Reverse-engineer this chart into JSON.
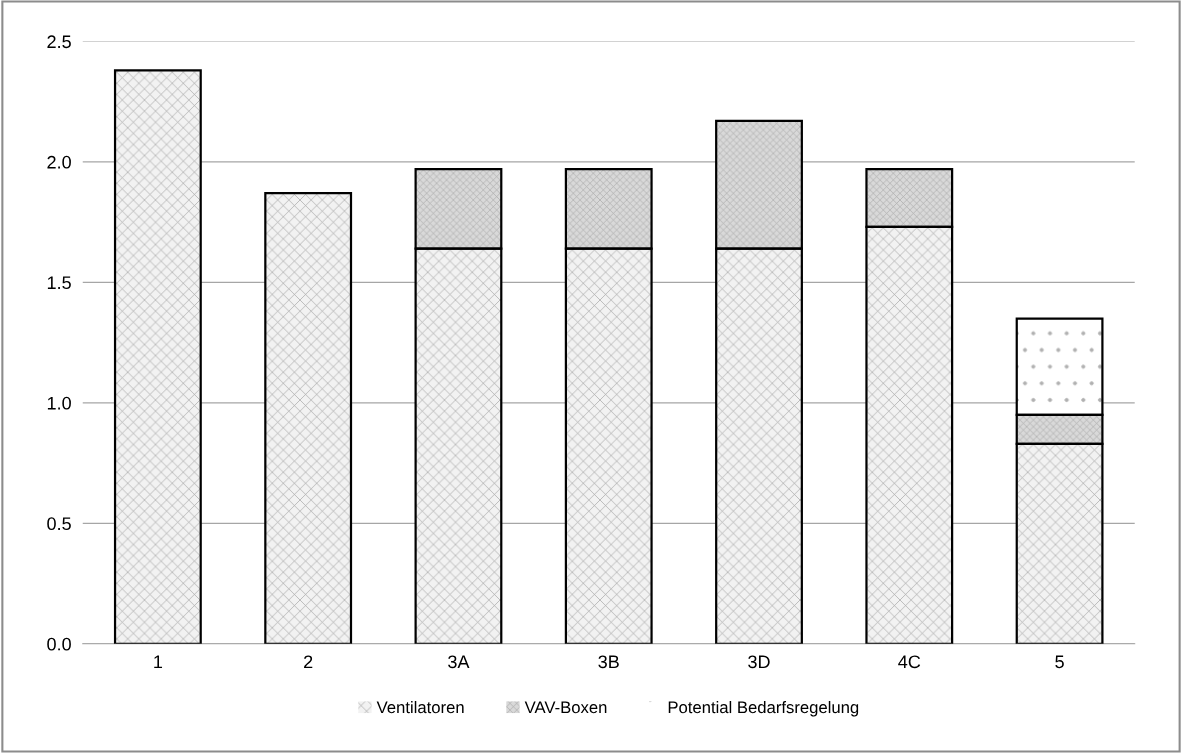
{
  "chart_data": {
    "type": "bar",
    "stacked": true,
    "categories": [
      "1",
      "2",
      "3A",
      "3B",
      "3D",
      "4C",
      "5"
    ],
    "series": [
      {
        "name": "Ventilatoren",
        "color": "#f2f2f2",
        "values": [
          2.38,
          1.87,
          1.64,
          1.64,
          1.64,
          1.73,
          0.83
        ]
      },
      {
        "name": "VAV-Boxen",
        "color": "#d9d9d9",
        "values": [
          null,
          null,
          0.33,
          0.33,
          0.53,
          0.24,
          0.12
        ]
      },
      {
        "name": "Potential Bedarfsregelung",
        "color": "#ffffff",
        "values": [
          null,
          null,
          null,
          null,
          null,
          null,
          0.4
        ]
      }
    ],
    "ylim": [
      0,
      2.5
    ],
    "yticks": [
      {
        "value": 0,
        "label": "0.0"
      },
      {
        "value": 0.5,
        "label": "0.5"
      },
      {
        "value": 1.0,
        "label": "1.0"
      },
      {
        "value": 1.5,
        "label": "1.5"
      },
      {
        "value": 2.0,
        "label": "2.0"
      },
      {
        "value": 2.5,
        "label": "2.5"
      }
    ],
    "grid": "y",
    "legend": "bottom"
  }
}
